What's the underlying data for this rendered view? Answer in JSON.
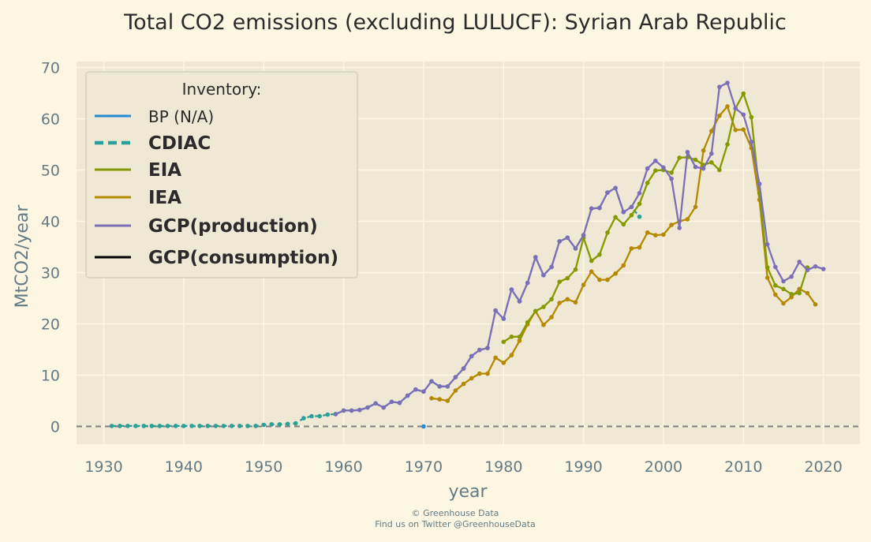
{
  "chart_data": {
    "type": "line",
    "title": "Total CO2 emissions (excluding LULUCF): Syrian Arab Republic",
    "xlabel": "year",
    "ylabel": "MtCO2/year",
    "xlim": [
      1927,
      2025
    ],
    "ylim": [
      -5,
      72
    ],
    "xticks": [
      1930,
      1940,
      1950,
      1960,
      1970,
      1980,
      1990,
      2000,
      2010,
      2020
    ],
    "yticks": [
      0,
      10,
      20,
      30,
      40,
      50,
      60,
      70
    ],
    "grid": true,
    "legend": {
      "title": "Inventory:",
      "placement": "top-left"
    },
    "reference_line": {
      "y": 0,
      "style": "dashed",
      "color": "#808080"
    },
    "series": [
      {
        "name": "BP (N/A)",
        "color": "#268bd2",
        "dash": "solid",
        "bold": false,
        "points": [
          [
            1970,
            0
          ]
        ]
      },
      {
        "name": "CDIAC",
        "color": "#2aa198",
        "dash": "dashed",
        "bold": true,
        "points": [
          [
            1931,
            0.1
          ],
          [
            1932,
            0.1
          ],
          [
            1933,
            0.1
          ],
          [
            1934,
            0.1
          ],
          [
            1935,
            0.1
          ],
          [
            1936,
            0.1
          ],
          [
            1937,
            0.1
          ],
          [
            1938,
            0.1
          ],
          [
            1939,
            0.1
          ],
          [
            1940,
            0.1
          ],
          [
            1941,
            0.1
          ],
          [
            1942,
            0.1
          ],
          [
            1943,
            0.1
          ],
          [
            1944,
            0.1
          ],
          [
            1945,
            0.1
          ],
          [
            1946,
            0.1
          ],
          [
            1947,
            0.1
          ],
          [
            1948,
            0.1
          ],
          [
            1949,
            0.1
          ],
          [
            1950,
            0.3
          ],
          [
            1951,
            0.4
          ],
          [
            1952,
            0.4
          ],
          [
            1953,
            0.5
          ],
          [
            1954,
            0.6
          ],
          [
            1955,
            1.6
          ],
          [
            1956,
            2.0
          ],
          [
            1957,
            2.0
          ],
          [
            1958,
            2.3
          ],
          [
            1959,
            2.4
          ],
          [
            1960,
            3.1
          ],
          [
            1961,
            3.1
          ],
          [
            1962,
            3.2
          ],
          [
            1963,
            3.7
          ],
          [
            1964,
            4.5
          ],
          [
            1965,
            3.7
          ],
          [
            1966,
            4.8
          ],
          [
            1967,
            4.6
          ],
          [
            1968,
            6.0
          ],
          [
            1969,
            7.2
          ],
          [
            1970,
            6.8
          ],
          [
            1971,
            8.8
          ],
          [
            1972,
            7.8
          ],
          [
            1973,
            7.8
          ],
          [
            1974,
            9.6
          ],
          [
            1975,
            11.3
          ],
          [
            1976,
            13.7
          ],
          [
            1977,
            14.9
          ],
          [
            1978,
            15.3
          ],
          [
            1979,
            22.6
          ],
          [
            1980,
            21.0
          ],
          [
            1981,
            26.7
          ],
          [
            1982,
            24.4
          ],
          [
            1983,
            28.0
          ],
          [
            1984,
            33.0
          ],
          [
            1985,
            29.5
          ],
          [
            1986,
            31.1
          ],
          [
            1987,
            36.1
          ],
          [
            1988,
            36.8
          ],
          [
            1989,
            34.7
          ],
          [
            1990,
            37.3
          ],
          [
            1991,
            42.5
          ],
          [
            1992,
            42.6
          ],
          [
            1993,
            45.6
          ],
          [
            1994,
            46.5
          ],
          [
            1995,
            41.8
          ],
          [
            1996,
            42.8
          ],
          [
            1997,
            40.9
          ]
        ]
      },
      {
        "name": "EIA",
        "color": "#859900",
        "dash": "solid",
        "bold": true,
        "points": [
          [
            1980,
            16.5
          ],
          [
            1981,
            17.5
          ],
          [
            1982,
            17.5
          ],
          [
            1983,
            20.3
          ],
          [
            1984,
            22.5
          ],
          [
            1985,
            23.3
          ],
          [
            1986,
            24.8
          ],
          [
            1987,
            28.2
          ],
          [
            1988,
            28.9
          ],
          [
            1989,
            30.6
          ],
          [
            1990,
            36.8
          ],
          [
            1991,
            32.3
          ],
          [
            1992,
            33.5
          ],
          [
            1993,
            37.8
          ],
          [
            1994,
            40.8
          ],
          [
            1995,
            39.4
          ],
          [
            1996,
            41.2
          ],
          [
            1997,
            43.4
          ],
          [
            1998,
            47.5
          ],
          [
            1999,
            49.9
          ],
          [
            2000,
            50.0
          ],
          [
            2001,
            49.5
          ],
          [
            2002,
            52.4
          ],
          [
            2003,
            52.5
          ],
          [
            2004,
            52.0
          ],
          [
            2005,
            51.0
          ],
          [
            2006,
            51.5
          ],
          [
            2007,
            50.0
          ],
          [
            2008,
            55.0
          ],
          [
            2009,
            62.0
          ],
          [
            2010,
            64.9
          ],
          [
            2011,
            60.3
          ],
          [
            2012,
            45.5
          ],
          [
            2013,
            31.0
          ],
          [
            2014,
            27.5
          ],
          [
            2015,
            26.8
          ],
          [
            2016,
            25.8
          ],
          [
            2017,
            26.0
          ],
          [
            2018,
            31.0
          ]
        ]
      },
      {
        "name": "IEA",
        "color": "#b58900",
        "dash": "solid",
        "bold": true,
        "points": [
          [
            1971,
            5.5
          ],
          [
            1972,
            5.3
          ],
          [
            1973,
            5.0
          ],
          [
            1974,
            7.0
          ],
          [
            1975,
            8.3
          ],
          [
            1976,
            9.4
          ],
          [
            1977,
            10.3
          ],
          [
            1978,
            10.3
          ],
          [
            1979,
            13.4
          ],
          [
            1980,
            12.4
          ],
          [
            1981,
            13.9
          ],
          [
            1982,
            16.7
          ],
          [
            1983,
            19.9
          ],
          [
            1984,
            22.5
          ],
          [
            1985,
            19.8
          ],
          [
            1986,
            21.3
          ],
          [
            1987,
            24.1
          ],
          [
            1988,
            24.8
          ],
          [
            1989,
            24.2
          ],
          [
            1990,
            27.6
          ],
          [
            1991,
            30.2
          ],
          [
            1992,
            28.6
          ],
          [
            1993,
            28.6
          ],
          [
            1994,
            29.8
          ],
          [
            1995,
            31.4
          ],
          [
            1996,
            34.7
          ],
          [
            1997,
            34.9
          ],
          [
            1998,
            37.8
          ],
          [
            1999,
            37.3
          ],
          [
            2000,
            37.4
          ],
          [
            2001,
            39.3
          ],
          [
            2002,
            40.0
          ],
          [
            2003,
            40.4
          ],
          [
            2004,
            42.8
          ],
          [
            2005,
            53.8
          ],
          [
            2006,
            57.6
          ],
          [
            2007,
            60.6
          ],
          [
            2008,
            62.4
          ],
          [
            2009,
            57.8
          ],
          [
            2010,
            57.9
          ],
          [
            2011,
            54.3
          ],
          [
            2012,
            44.2
          ],
          [
            2013,
            29.0
          ],
          [
            2014,
            25.7
          ],
          [
            2015,
            24.0
          ],
          [
            2016,
            25.2
          ],
          [
            2017,
            26.8
          ],
          [
            2018,
            26.0
          ],
          [
            2019,
            23.8
          ]
        ]
      },
      {
        "name": "GCP(production)",
        "color": "#7b6fb8",
        "dash": "solid",
        "bold": true,
        "points": [
          [
            1959,
            2.4
          ],
          [
            1960,
            3.1
          ],
          [
            1961,
            3.1
          ],
          [
            1962,
            3.2
          ],
          [
            1963,
            3.7
          ],
          [
            1964,
            4.5
          ],
          [
            1965,
            3.7
          ],
          [
            1966,
            4.8
          ],
          [
            1967,
            4.6
          ],
          [
            1968,
            6.0
          ],
          [
            1969,
            7.2
          ],
          [
            1970,
            6.8
          ],
          [
            1971,
            8.8
          ],
          [
            1972,
            7.8
          ],
          [
            1973,
            7.8
          ],
          [
            1974,
            9.6
          ],
          [
            1975,
            11.3
          ],
          [
            1976,
            13.7
          ],
          [
            1977,
            14.9
          ],
          [
            1978,
            15.3
          ],
          [
            1979,
            22.6
          ],
          [
            1980,
            21.0
          ],
          [
            1981,
            26.7
          ],
          [
            1982,
            24.4
          ],
          [
            1983,
            28.0
          ],
          [
            1984,
            33.0
          ],
          [
            1985,
            29.5
          ],
          [
            1986,
            31.1
          ],
          [
            1987,
            36.1
          ],
          [
            1988,
            36.8
          ],
          [
            1989,
            34.7
          ],
          [
            1990,
            37.3
          ],
          [
            1991,
            42.5
          ],
          [
            1992,
            42.6
          ],
          [
            1993,
            45.6
          ],
          [
            1994,
            46.5
          ],
          [
            1995,
            41.8
          ],
          [
            1996,
            42.8
          ],
          [
            1997,
            45.5
          ],
          [
            1998,
            50.3
          ],
          [
            1999,
            51.8
          ],
          [
            2000,
            50.5
          ],
          [
            2001,
            48.3
          ],
          [
            2002,
            38.7
          ],
          [
            2003,
            53.5
          ],
          [
            2004,
            50.6
          ],
          [
            2005,
            50.3
          ],
          [
            2006,
            53.2
          ],
          [
            2007,
            66.2
          ],
          [
            2008,
            67.0
          ],
          [
            2009,
            62.0
          ],
          [
            2010,
            60.8
          ],
          [
            2011,
            55.5
          ],
          [
            2012,
            47.3
          ],
          [
            2013,
            35.5
          ],
          [
            2014,
            31.1
          ],
          [
            2015,
            28.3
          ],
          [
            2016,
            29.2
          ],
          [
            2017,
            32.1
          ],
          [
            2018,
            30.5
          ],
          [
            2019,
            31.2
          ],
          [
            2020,
            30.7
          ]
        ]
      },
      {
        "name": "GCP(consumption)",
        "color": "#000000",
        "dash": "solid",
        "bold": true,
        "points": []
      }
    ]
  },
  "footer": {
    "line1": "© Greenhouse Data",
    "line2": "Find us on Twitter @GreenhouseData"
  },
  "colors": {
    "page_background": "#fdf6e3",
    "plot_background": "#eee8d5",
    "grid": "#fdf6e3"
  }
}
